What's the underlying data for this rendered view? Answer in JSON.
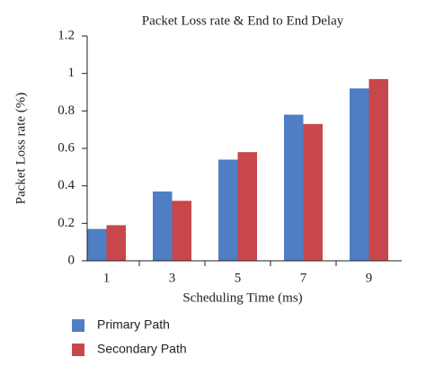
{
  "chart_data": {
    "type": "bar",
    "title": "Packet Loss rate & End to End Delay",
    "x_label": "Scheduling Time (ms)",
    "y_label": "Packet Loss rate (%)",
    "categories": [
      "1",
      "3",
      "5",
      "7",
      "9"
    ],
    "series": [
      {
        "name": "Primary Path",
        "color": "#4f7ec4",
        "values": [
          0.17,
          0.37,
          0.54,
          0.78,
          0.92
        ]
      },
      {
        "name": "Secondary Path",
        "color": "#c8474a",
        "values": [
          0.19,
          0.32,
          0.58,
          0.73,
          0.97
        ]
      }
    ],
    "ylim": [
      0,
      1.2
    ],
    "yticks": [
      0,
      0.2,
      0.4,
      0.6,
      0.8,
      1,
      1.2
    ],
    "grid": false
  }
}
